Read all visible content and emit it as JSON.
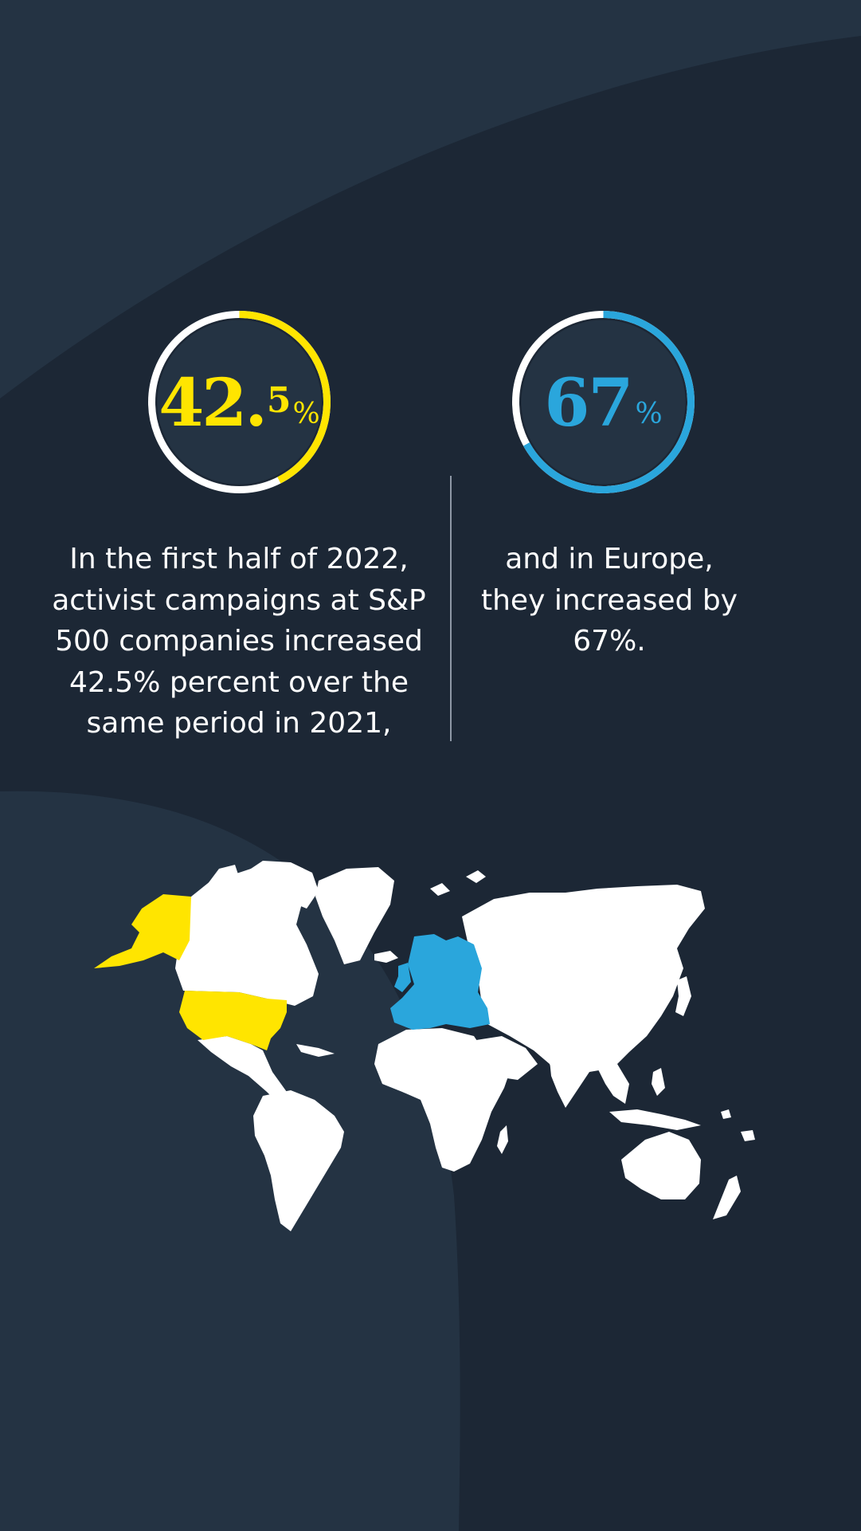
{
  "stats": {
    "us": {
      "value_main": "42.",
      "value_decimal": "5",
      "value_pct": "%",
      "progress": 0.425,
      "color": "#ffe500",
      "text": "In the first half of 2022, activist campaigns at S&P 500 companies increased 42.5% percent over the same period in 2021,"
    },
    "europe": {
      "value_main": "67",
      "value_pct": "%",
      "progress": 0.67,
      "color": "#2aa6dc",
      "text": "and in Europe, they increased by 67%."
    }
  },
  "map": {
    "highlighted_regions": [
      {
        "region": "united-states",
        "color": "#ffe500"
      },
      {
        "region": "europe",
        "color": "#2aa6dc"
      }
    ],
    "base_color": "#ffffff"
  },
  "colors": {
    "background": "#1c2735",
    "background_shape": "#243343",
    "text": "#ffffff"
  }
}
